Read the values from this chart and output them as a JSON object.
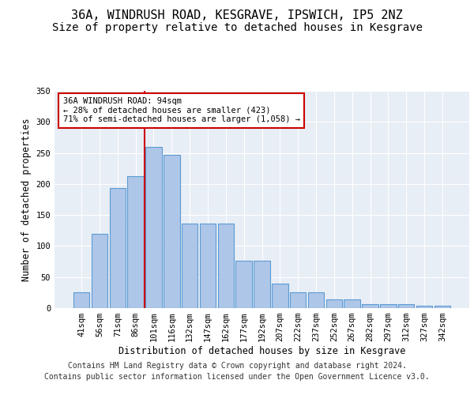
{
  "title_line1": "36A, WINDRUSH ROAD, KESGRAVE, IPSWICH, IP5 2NZ",
  "title_line2": "Size of property relative to detached houses in Kesgrave",
  "xlabel": "Distribution of detached houses by size in Kesgrave",
  "ylabel": "Number of detached properties",
  "categories": [
    "41sqm",
    "56sqm",
    "71sqm",
    "86sqm",
    "101sqm",
    "116sqm",
    "132sqm",
    "147sqm",
    "162sqm",
    "177sqm",
    "192sqm",
    "207sqm",
    "222sqm",
    "237sqm",
    "252sqm",
    "267sqm",
    "282sqm",
    "297sqm",
    "312sqm",
    "327sqm",
    "342sqm"
  ],
  "values": [
    25,
    120,
    193,
    213,
    260,
    247,
    136,
    136,
    136,
    76,
    76,
    39,
    25,
    25,
    14,
    14,
    7,
    6,
    6,
    4,
    4
  ],
  "bar_color": "#aec6e8",
  "bar_edge_color": "#5b9bd5",
  "vline_x": 3.5,
  "vline_color": "#cc0000",
  "annotation_line1": "36A WINDRUSH ROAD: 94sqm",
  "annotation_line2": "← 28% of detached houses are smaller (423)",
  "annotation_line3": "71% of semi-detached houses are larger (1,058) →",
  "annotation_box_color": "#ffffff",
  "annotation_box_edge": "#cc0000",
  "ylim": [
    0,
    350
  ],
  "yticks": [
    0,
    50,
    100,
    150,
    200,
    250,
    300,
    350
  ],
  "footer_line1": "Contains HM Land Registry data © Crown copyright and database right 2024.",
  "footer_line2": "Contains public sector information licensed under the Open Government Licence v3.0.",
  "background_color": "#e8eef5",
  "grid_color": "#ffffff",
  "title_fontsize": 11,
  "subtitle_fontsize": 10,
  "axis_label_fontsize": 8.5,
  "tick_fontsize": 7.5,
  "annotation_fontsize": 7.5,
  "footer_fontsize": 7
}
